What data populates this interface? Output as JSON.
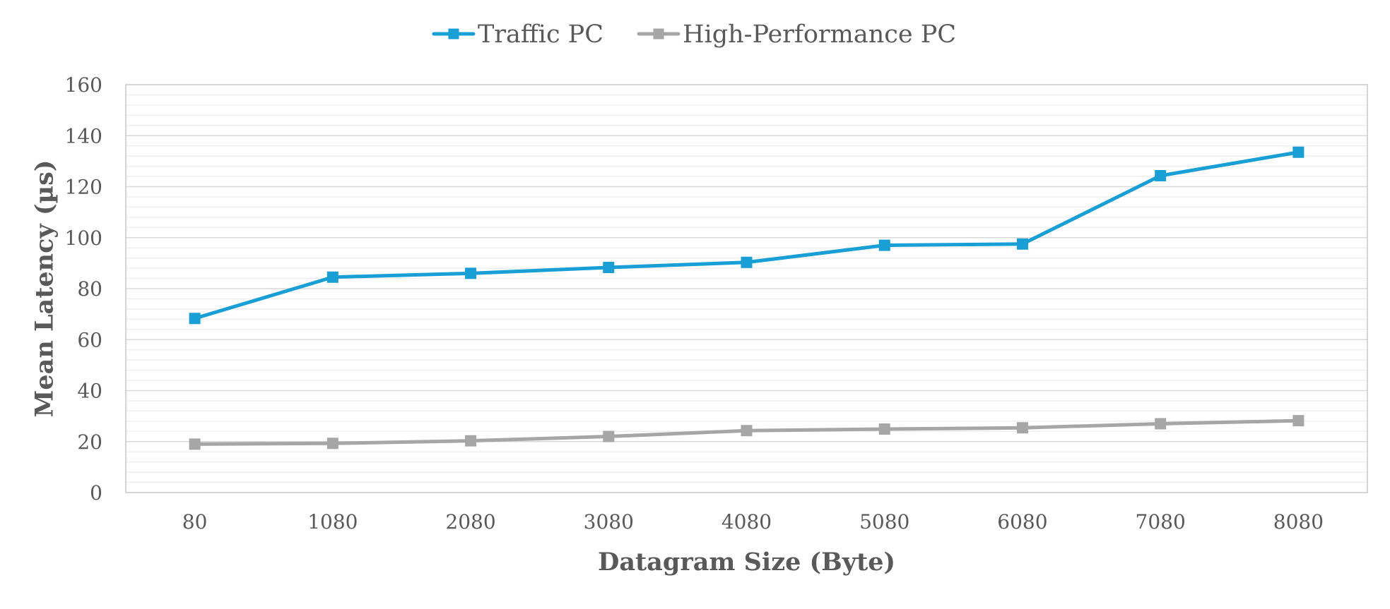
{
  "chart_data": {
    "type": "line",
    "title": "",
    "xlabel": "Datagram Size (Byte)",
    "ylabel": "Mean Latency (µs)",
    "categories": [
      "80",
      "1080",
      "2080",
      "3080",
      "4080",
      "5080",
      "6080",
      "7080",
      "8080"
    ],
    "ylim": [
      0,
      160
    ],
    "yticks": [
      0,
      20,
      40,
      60,
      80,
      100,
      120,
      140,
      160
    ],
    "y_minor_step": 4,
    "grid": true,
    "legend_position": "top",
    "series": [
      {
        "name": "Traffic PC",
        "color": "#189FD5",
        "marker": "square",
        "values": [
          68.3,
          84.5,
          86.0,
          88.3,
          90.3,
          97.0,
          97.5,
          124.3,
          133.5
        ]
      },
      {
        "name": "High-Performance PC",
        "color": "#A6A6A6",
        "marker": "square",
        "values": [
          19.0,
          19.3,
          20.3,
          22.0,
          24.3,
          24.9,
          25.4,
          27.0,
          28.2
        ]
      }
    ]
  }
}
